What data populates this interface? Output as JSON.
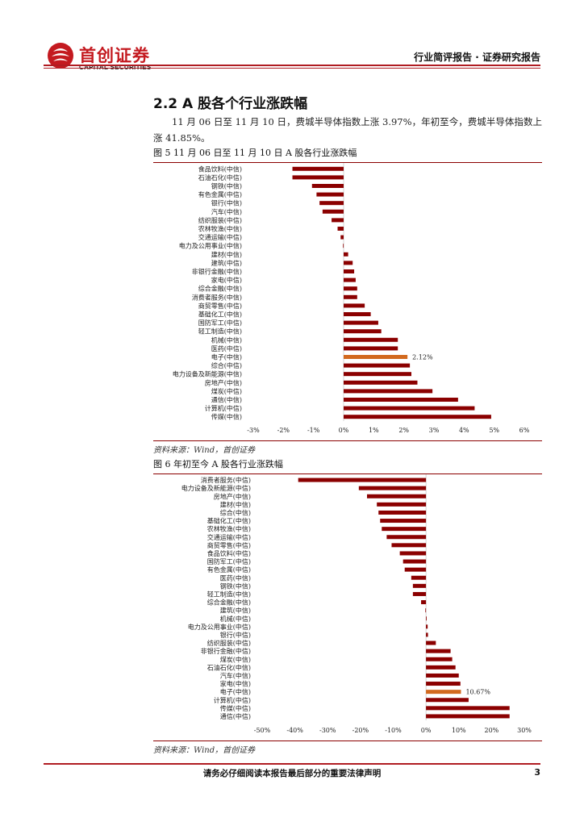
{
  "header": {
    "logo_cn": "首创证券",
    "logo_en": "CAPITAL SECURITIES",
    "report_type": "行业简评报告 · 证券研究报告"
  },
  "section": {
    "title": "2.2 A 股各个行业涨跌幅",
    "paragraph": "11 月 06 日至 11 月 10 日，费城半导体指数上涨 3.97%，年初至今，费城半导体指数上涨 41.85%。"
  },
  "colors": {
    "bar": "#8b0000",
    "highlight": "#d2691e",
    "brand": "#c41a20"
  },
  "chart_data": [
    {
      "type": "bar",
      "orientation": "horizontal",
      "title": "图 5   11 月 06 日至 11 月 10 日 A 股各行业涨跌幅",
      "categories": [
        "食品饮料(中信)",
        "石油石化(中信)",
        "钢铁(中信)",
        "有色金属(中信)",
        "银行(中信)",
        "汽车(中信)",
        "纺织服装(中信)",
        "农林牧渔(中信)",
        "交通运输(中信)",
        "电力及公用事业(中信)",
        "建材(中信)",
        "建筑(中信)",
        "非银行金融(中信)",
        "家电(中信)",
        "综合金融(中信)",
        "消费者服务(中信)",
        "商贸零售(中信)",
        "基础化工(中信)",
        "国防军工(中信)",
        "轻工制造(中信)",
        "机械(中信)",
        "医药(中信)",
        "电子(中信)",
        "综合(中信)",
        "电力设备及新能源(中信)",
        "房地产(中信)",
        "煤炭(中信)",
        "通信(中信)",
        "计算机(中信)",
        "传媒(中信)"
      ],
      "values": [
        -1.7,
        -1.7,
        -1.05,
        -0.9,
        -0.8,
        -0.7,
        -0.4,
        -0.2,
        -0.1,
        -0.02,
        0.15,
        0.3,
        0.35,
        0.4,
        0.45,
        0.45,
        0.7,
        0.9,
        1.15,
        1.25,
        1.8,
        1.8,
        2.12,
        2.2,
        2.25,
        2.45,
        2.95,
        3.8,
        4.35,
        4.9
      ],
      "highlight_index": 22,
      "highlight_label": "2.12%",
      "xlim": [
        -3,
        6
      ],
      "ticks": [
        "-3%",
        "-2%",
        "-1%",
        "0%",
        "1%",
        "2%",
        "3%",
        "4%",
        "5%",
        "6%"
      ],
      "source": "资料来源：Wind，首创证券"
    },
    {
      "type": "bar",
      "orientation": "horizontal",
      "title": "图 6   年初至今 A 股各行业涨跌幅",
      "categories": [
        "消费者服务(中信)",
        "电力设备及新能源(中信)",
        "房地产(中信)",
        "建材(中信)",
        "综合(中信)",
        "基础化工(中信)",
        "农林牧渔(中信)",
        "交通运输(中信)",
        "商贸零售(中信)",
        "食品饮料(中信)",
        "国防军工(中信)",
        "有色金属(中信)",
        "医药(中信)",
        "钢铁(中信)",
        "轻工制造(中信)",
        "综合金融(中信)",
        "建筑(中信)",
        "机械(中信)",
        "电力及公用事业(中信)",
        "银行(中信)",
        "纺织服装(中信)",
        "非银行金融(中信)",
        "煤炭(中信)",
        "石油石化(中信)",
        "汽车(中信)",
        "家电(中信)",
        "电子(中信)",
        "计算机(中信)",
        "传媒(中信)",
        "通信(中信)"
      ],
      "values": [
        -39,
        -20.5,
        -18,
        -15,
        -14.5,
        -14,
        -13.5,
        -12,
        -10.5,
        -8,
        -7,
        -6.5,
        -4.5,
        -4,
        -4,
        -1.5,
        -0.2,
        0.2,
        0.5,
        0.6,
        3,
        7.5,
        8,
        9,
        10,
        10.5,
        10.67,
        13,
        25.5,
        25.5
      ],
      "highlight_index": 26,
      "highlight_label": "10.67%",
      "xlim": [
        -50,
        30
      ],
      "ticks": [
        "-50%",
        "-40%",
        "-30%",
        "-20%",
        "-10%",
        "0%",
        "10%",
        "20%",
        "30%"
      ],
      "source": "资料来源：Wind，首创证券"
    }
  ],
  "footer": {
    "disclaimer": "请务必仔细阅读本报告最后部分的重要法律声明",
    "page": "3"
  }
}
